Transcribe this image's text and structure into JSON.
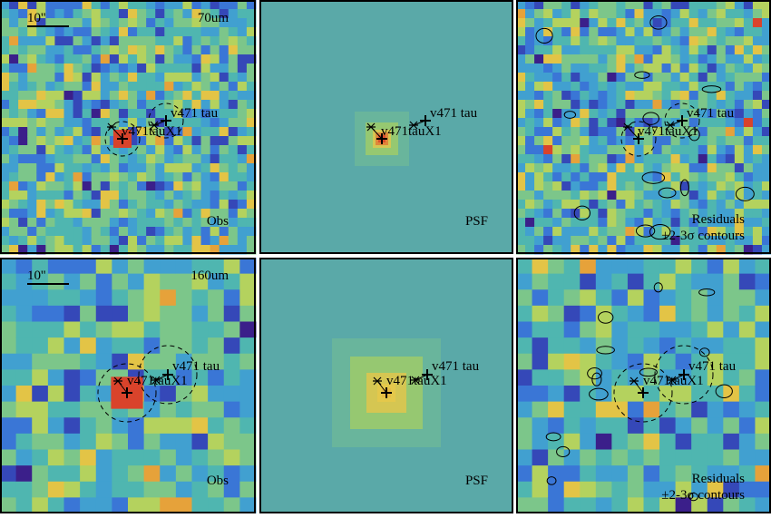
{
  "rows": [
    {
      "band": "70um",
      "scale": "10''"
    },
    {
      "band": "160um",
      "scale": "10''"
    }
  ],
  "labels": {
    "source_a": "v471 tau",
    "source_b": "v471tauX1",
    "obs": "Obs",
    "psf": "PSF",
    "residuals": "Residuals",
    "contours": "±2-3σ contours"
  }
}
